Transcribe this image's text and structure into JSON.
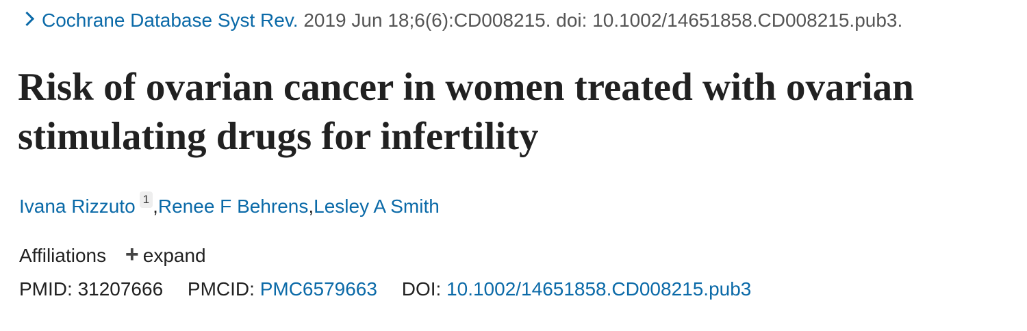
{
  "citation": {
    "journal": "Cochrane Database Syst Rev.",
    "details": "2019 Jun 18;6(6):CD008215. doi: 10.1002/14651858.CD008215.pub3."
  },
  "title": "Risk of ovarian cancer in women treated with ovarian stimulating drugs for infertility",
  "authors": [
    {
      "name": "Ivana Rizzuto",
      "affiliation_ref": "1"
    },
    {
      "name": "Renee F Behrens"
    },
    {
      "name": "Lesley A Smith"
    }
  ],
  "author_separator": ",",
  "affiliations": {
    "label": "Affiliations",
    "toggle": "expand",
    "toggle_icon": "plus-icon"
  },
  "identifiers": {
    "pmid_label": "PMID:",
    "pmid": "31207666",
    "pmcid_label": "PMCID:",
    "pmcid": "PMC6579663",
    "doi_label": "DOI:",
    "doi": "10.1002/14651858.CD008215.pub3"
  },
  "colors": {
    "link": "#0b6aa8",
    "text": "#212121",
    "muted": "#555555"
  }
}
